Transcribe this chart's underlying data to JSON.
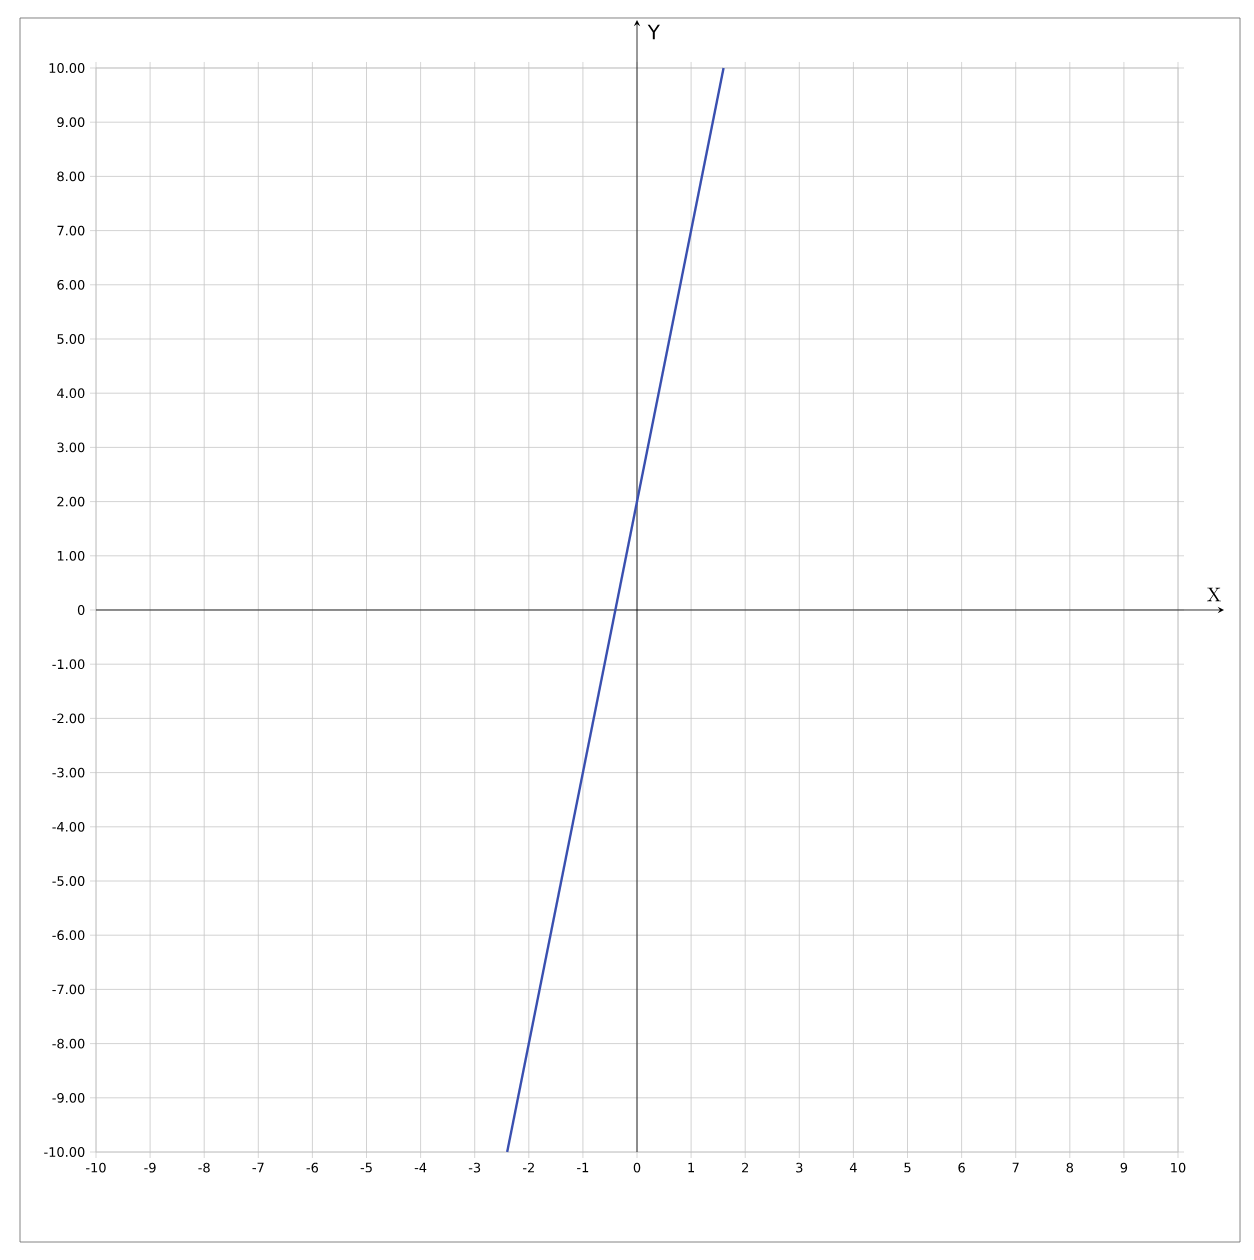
{
  "chart_data": {
    "type": "line",
    "xlabel": "X",
    "ylabel": "Y",
    "x": [
      -2.4,
      1.6
    ],
    "series": [
      {
        "color": "#3a50b0",
        "values": [
          -10,
          10
        ]
      }
    ],
    "xlim": [
      -10,
      10
    ],
    "ylim": [
      -10,
      10
    ],
    "xticks": [
      -10,
      -9,
      -8,
      -7,
      -6,
      -5,
      -4,
      -3,
      -2,
      -1,
      0,
      1,
      2,
      3,
      4,
      5,
      6,
      7,
      8,
      9,
      10
    ],
    "yticks": [
      {
        "value": -10,
        "label": "-10.00"
      },
      {
        "value": -9,
        "label": "-9.00"
      },
      {
        "value": -8,
        "label": "-8.00"
      },
      {
        "value": -7,
        "label": "-7.00"
      },
      {
        "value": -6,
        "label": "-6.00"
      },
      {
        "value": -5,
        "label": "-5.00"
      },
      {
        "value": -4,
        "label": "-4.00"
      },
      {
        "value": -3,
        "label": "-3.00"
      },
      {
        "value": -2,
        "label": "-2.00"
      },
      {
        "value": -1,
        "label": "-1.00"
      },
      {
        "value": 0,
        "label": "0"
      },
      {
        "value": 1,
        "label": "1.00"
      },
      {
        "value": 2,
        "label": "2.00"
      },
      {
        "value": 3,
        "label": "3.00"
      },
      {
        "value": 4,
        "label": "4.00"
      },
      {
        "value": 5,
        "label": "5.00"
      },
      {
        "value": 6,
        "label": "6.00"
      },
      {
        "value": 7,
        "label": "7.00"
      },
      {
        "value": 8,
        "label": "8.00"
      },
      {
        "value": 9,
        "label": "9.00"
      },
      {
        "value": 10,
        "label": "10.00"
      }
    ],
    "grid": true,
    "marker": "none",
    "line_style": "solid"
  }
}
